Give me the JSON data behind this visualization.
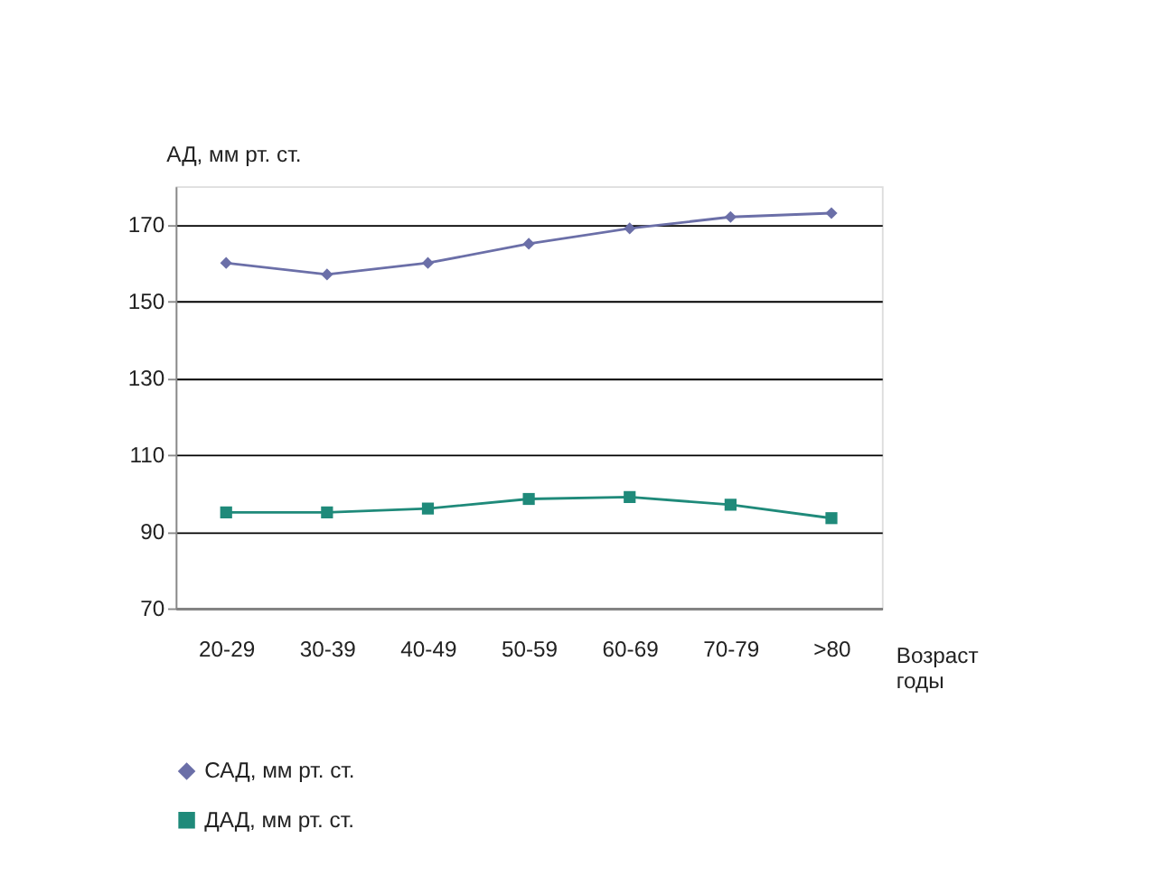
{
  "chart_data": {
    "type": "line",
    "xlabel": "Возраст\nгоды",
    "ylabel": "АД, мм рт. ст.",
    "categories": [
      "20-29",
      "30-39",
      "40-49",
      "50-59",
      "60-69",
      "70-79",
      ">80"
    ],
    "series": [
      {
        "name": "САД, мм рт. ст.",
        "color": "#6b6fa8",
        "marker": "diamond",
        "values": [
          160,
          157,
          160,
          165,
          169,
          172,
          173
        ]
      },
      {
        "name": "ДАД, мм рт. ст.",
        "color": "#1f8a7a",
        "marker": "square",
        "values": [
          95,
          95,
          96,
          98.5,
          99,
          97,
          93.5
        ]
      }
    ],
    "ylim": [
      70,
      180
    ],
    "yticks": [
      70,
      90,
      110,
      130,
      150,
      170
    ],
    "grid": "y",
    "legend": "bottom left",
    "line_style": "solid"
  }
}
